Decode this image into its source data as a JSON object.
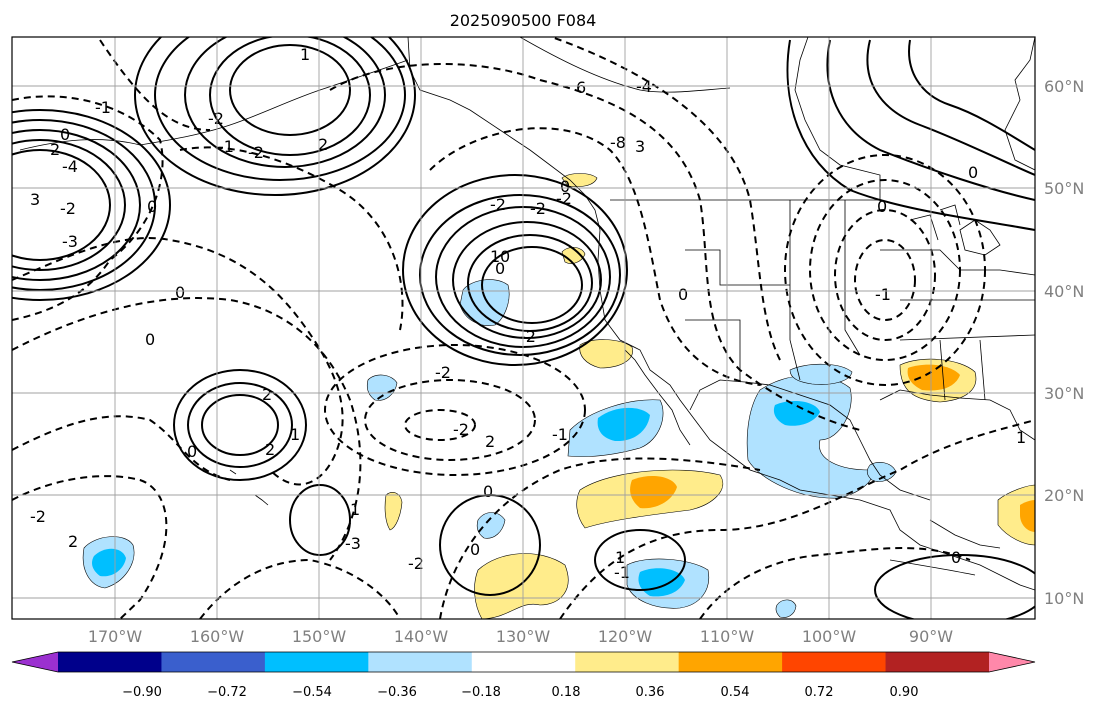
{
  "title": "2025090500 F084",
  "lat_labels": [
    "60°N",
    "50°N",
    "40°N",
    "30°N",
    "20°N",
    "10°N"
  ],
  "lon_labels": [
    "170°W",
    "160°W",
    "150°W",
    "140°W",
    "130°W",
    "120°W",
    "110°W",
    "100°W",
    "90°W"
  ],
  "colorbar": {
    "labels": [
      "−0.90",
      "−0.72",
      "−0.54",
      "−0.36",
      "−0.18",
      "0.18",
      "0.36",
      "0.54",
      "0.72",
      "0.90"
    ],
    "colors": [
      "#9b30d0",
      "#00008b",
      "#3a5fcd",
      "#00bfff",
      "#b0e2ff",
      "#ffffff",
      "#ffec8b",
      "#ffa500",
      "#ff4500",
      "#b22222",
      "#ff88aa"
    ]
  },
  "contour_labels": [
    "0",
    "-1",
    "2",
    "-3",
    "-4",
    "-2",
    "3",
    "1",
    "-2",
    "-2",
    "2",
    "-1",
    "0",
    "-4",
    "6",
    "-8",
    "3",
    "-2",
    "-2",
    "-2",
    "1",
    "-2",
    "0",
    "0",
    "2",
    "1",
    "2",
    "-2",
    "2",
    "-2",
    "0",
    "-2",
    "2",
    "1",
    "-3",
    "-2",
    "-1",
    "0",
    "0",
    "1",
    "-1",
    "0",
    "-1",
    "0",
    "0",
    "1",
    "0",
    "0",
    "0",
    "0"
  ],
  "fill_colors": {
    "light_blue": "#b0e2ff",
    "blue": "#00bfff",
    "light_yellow": "#ffec8b",
    "orange": "#ffa500"
  }
}
